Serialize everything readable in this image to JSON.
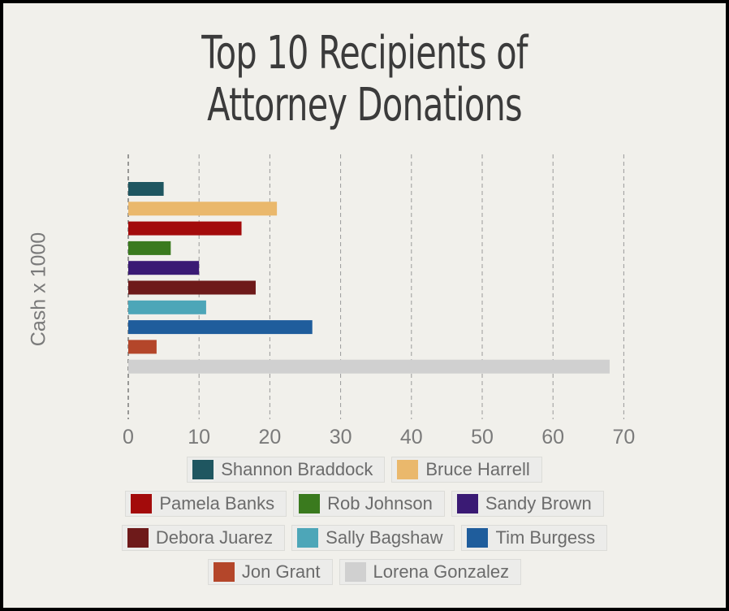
{
  "chart_data": {
    "type": "bar",
    "orientation": "horizontal",
    "title_lines": [
      "Top 10 Recipients of",
      "Attorney Donations"
    ],
    "ylabel": "Cash x 1000",
    "xlabel": "",
    "xlim": [
      0,
      70
    ],
    "xticks": [
      "0",
      "10",
      "20",
      "30",
      "40",
      "50",
      "60",
      "70"
    ],
    "grid": "vertical dashed",
    "legend_position": "bottom",
    "series": [
      {
        "name": "Shannon Braddock",
        "value": 5,
        "color": "#1f5660"
      },
      {
        "name": "Bruce Harrell",
        "value": 21,
        "color": "#eab86c"
      },
      {
        "name": "Pamela Banks",
        "value": 16,
        "color": "#a30b0b"
      },
      {
        "name": "Rob Johnson",
        "value": 6,
        "color": "#3a7a1e"
      },
      {
        "name": "Sandy Brown",
        "value": 10,
        "color": "#3a1a74"
      },
      {
        "name": "Debora Juarez",
        "value": 18,
        "color": "#6e1a1a"
      },
      {
        "name": "Sally Bagshaw",
        "value": 11,
        "color": "#4da6b8"
      },
      {
        "name": "Tim Burgess",
        "value": 26,
        "color": "#1f5d9c"
      },
      {
        "name": "Jon Grant",
        "value": 4,
        "color": "#b4462a"
      },
      {
        "name": "Lorena Gonzalez",
        "value": 68,
        "color": "#d0d0d0"
      }
    ]
  }
}
